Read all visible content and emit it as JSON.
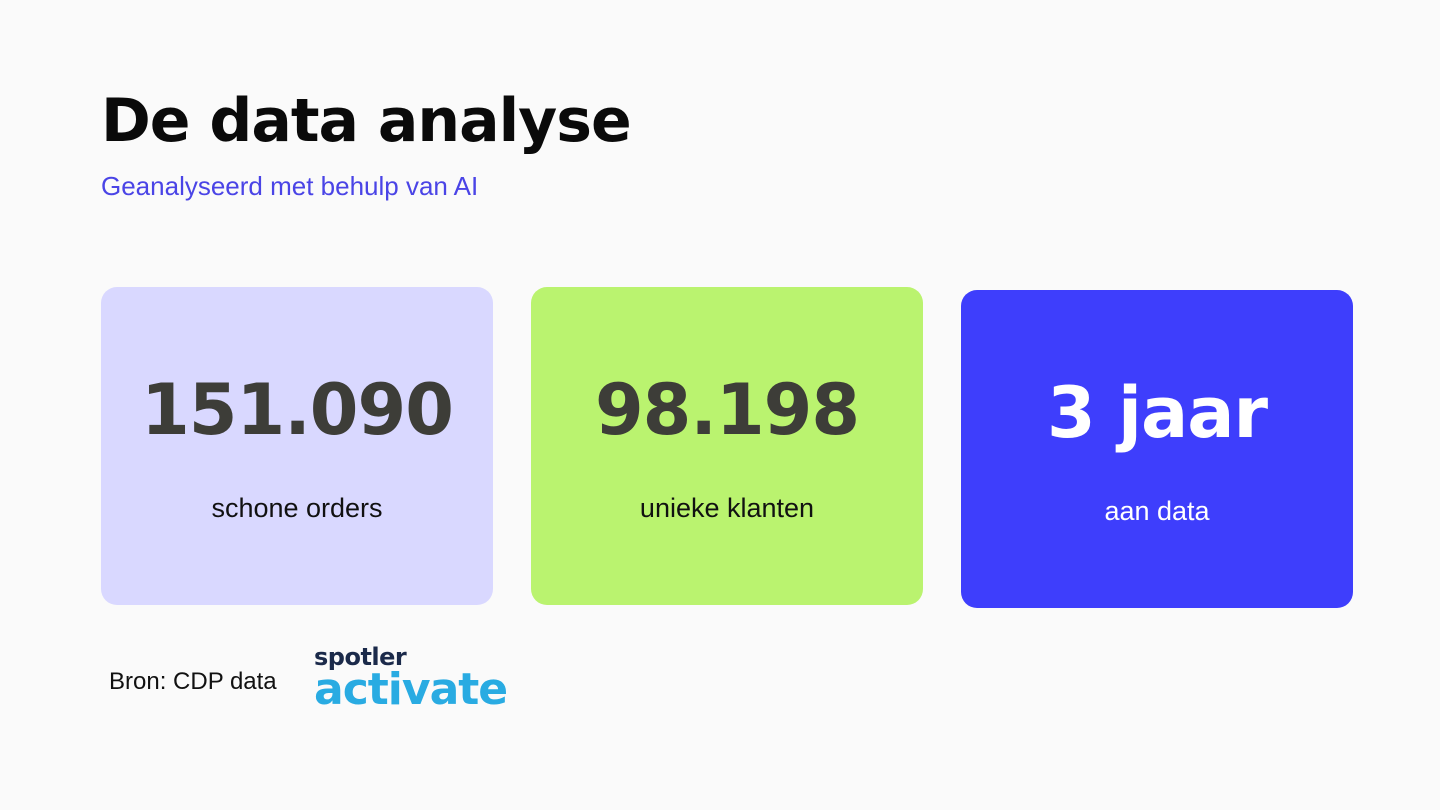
{
  "header": {
    "title": "De data analyse",
    "subtitle": "Geanalyseerd met behulp van AI"
  },
  "stats": [
    {
      "value": "151.090",
      "label": "schone orders",
      "color": "#d9d8ff"
    },
    {
      "value": "98.198",
      "label": "unieke klanten",
      "color": "#baf36f"
    },
    {
      "value": "3 jaar",
      "label": "aan data",
      "color": "#3e3efc"
    }
  ],
  "footer": {
    "source": "Bron: CDP data",
    "logo": {
      "line1": "spotler",
      "line2": "activate"
    }
  }
}
